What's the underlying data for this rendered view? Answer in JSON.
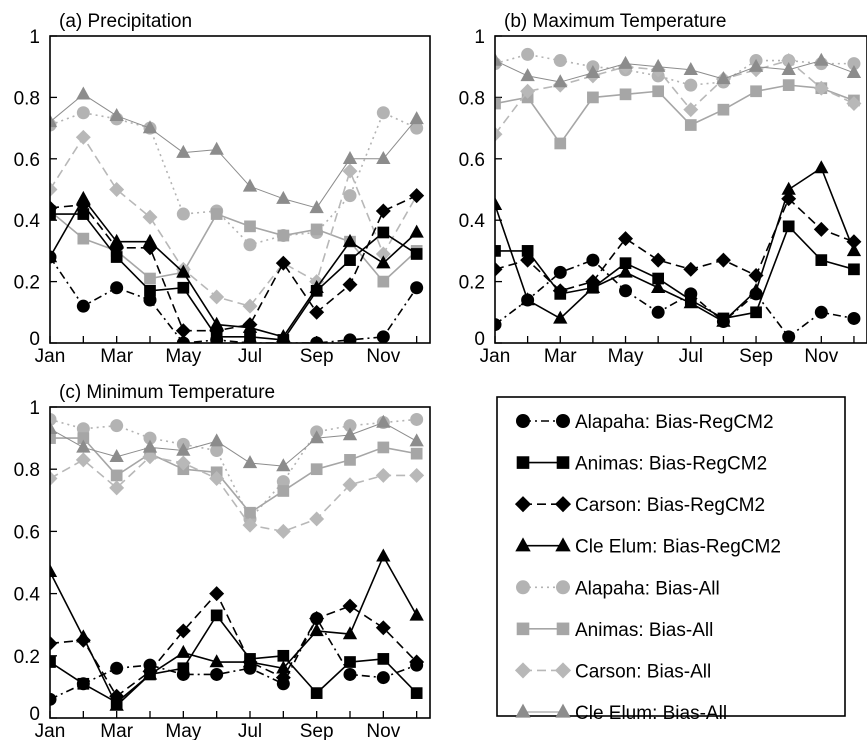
{
  "chart_data": [
    {
      "type": "line",
      "title": "(a) Precipitation",
      "ylim": [
        0,
        1
      ],
      "yticks": [
        "0",
        "0.2",
        "0.4",
        "0.6",
        "0.8",
        "1"
      ],
      "xticks": [
        "Jan",
        "Mar",
        "May",
        "Jul",
        "Sep",
        "Nov"
      ],
      "x": [
        1,
        2,
        3,
        4,
        5,
        6,
        7,
        8,
        9,
        10,
        11,
        12
      ],
      "series": [
        {
          "name": "Alapaha: Bias-RegCM2",
          "values": [
            0.28,
            0.12,
            0.18,
            0.14,
            0.0,
            0.01,
            0.0,
            0.0,
            0.0,
            0.01,
            0.02,
            0.18
          ]
        },
        {
          "name": "Animas: Bias-RegCM2",
          "values": [
            0.42,
            0.42,
            0.28,
            0.17,
            0.18,
            0.02,
            0.02,
            0.01,
            0.17,
            0.27,
            0.36,
            0.29
          ]
        },
        {
          "name": "Carson: Bias-RegCM2",
          "values": [
            0.44,
            0.45,
            0.31,
            0.31,
            0.04,
            0.04,
            0.06,
            0.26,
            0.1,
            0.19,
            0.43,
            0.48
          ]
        },
        {
          "name": "Cle Elum: Bias-RegCM2",
          "values": [
            0.28,
            0.47,
            0.33,
            0.33,
            0.23,
            0.06,
            0.05,
            0.02,
            0.18,
            0.33,
            0.26,
            0.36
          ]
        },
        {
          "name": "Alapaha: Bias-All",
          "values": [
            0.71,
            0.75,
            0.73,
            0.7,
            0.42,
            0.43,
            0.32,
            0.35,
            0.36,
            0.48,
            0.75,
            0.7
          ]
        },
        {
          "name": "Animas: Bias-All",
          "values": [
            0.43,
            0.34,
            0.3,
            0.21,
            0.23,
            0.42,
            0.38,
            0.35,
            0.37,
            0.33,
            0.2,
            0.3
          ]
        },
        {
          "name": "Carson: Bias-All",
          "values": [
            0.5,
            0.67,
            0.5,
            0.41,
            0.24,
            0.15,
            0.12,
            0.26,
            0.2,
            0.56,
            0.29,
            0.48
          ]
        },
        {
          "name": "Cle Elum: Bias-All",
          "values": [
            0.72,
            0.81,
            0.74,
            0.7,
            0.62,
            0.63,
            0.51,
            0.47,
            0.44,
            0.6,
            0.6,
            0.73
          ]
        }
      ]
    },
    {
      "type": "line",
      "title": "(b) Maximum Temperature",
      "ylim": [
        0,
        1
      ],
      "yticks": [
        "0",
        "0.2",
        "0.4",
        "0.6",
        "0.8",
        "1"
      ],
      "xticks": [
        "Jan",
        "Mar",
        "May",
        "Jul",
        "Sep",
        "Nov"
      ],
      "x": [
        1,
        2,
        3,
        4,
        5,
        6,
        7,
        8,
        9,
        10,
        11,
        12
      ],
      "series": [
        {
          "name": "Alapaha: Bias-RegCM2",
          "values": [
            0.06,
            0.14,
            0.23,
            0.27,
            0.17,
            0.1,
            0.16,
            0.07,
            0.16,
            0.02,
            0.1,
            0.08
          ]
        },
        {
          "name": "Animas: Bias-RegCM2",
          "values": [
            0.3,
            0.3,
            0.16,
            0.18,
            0.26,
            0.21,
            0.14,
            0.08,
            0.1,
            0.38,
            0.27,
            0.24
          ]
        },
        {
          "name": "Carson: Bias-RegCM2",
          "values": [
            0.24,
            0.27,
            0.17,
            0.2,
            0.34,
            0.27,
            0.24,
            0.27,
            0.22,
            0.47,
            0.37,
            0.33
          ]
        },
        {
          "name": "Cle Elum: Bias-RegCM2",
          "values": [
            0.45,
            0.14,
            0.08,
            0.18,
            0.23,
            0.18,
            0.13,
            0.07,
            0.17,
            0.5,
            0.57,
            0.3
          ]
        },
        {
          "name": "Alapaha: Bias-All",
          "values": [
            0.91,
            0.94,
            0.92,
            0.9,
            0.89,
            0.87,
            0.84,
            0.85,
            0.92,
            0.92,
            0.91,
            0.91
          ]
        },
        {
          "name": "Animas: Bias-All",
          "values": [
            0.78,
            0.8,
            0.65,
            0.8,
            0.81,
            0.82,
            0.71,
            0.76,
            0.82,
            0.84,
            0.83,
            0.79
          ]
        },
        {
          "name": "Carson: Bias-All",
          "values": [
            0.68,
            0.82,
            0.84,
            0.87,
            0.9,
            0.89,
            0.76,
            0.86,
            0.89,
            0.92,
            0.83,
            0.78
          ]
        },
        {
          "name": "Cle Elum: Bias-All",
          "values": [
            0.92,
            0.87,
            0.85,
            0.88,
            0.91,
            0.9,
            0.89,
            0.86,
            0.9,
            0.89,
            0.92,
            0.88
          ]
        }
      ]
    },
    {
      "type": "line",
      "title": "(c) Minimum Temperature",
      "ylim": [
        0,
        1
      ],
      "yticks": [
        "0",
        "0.2",
        "0.4",
        "0.6",
        "0.8",
        "1"
      ],
      "xticks": [
        "Jan",
        "Mar",
        "May",
        "Jul",
        "Sep",
        "Nov"
      ],
      "x": [
        1,
        2,
        3,
        4,
        5,
        6,
        7,
        8,
        9,
        10,
        11,
        12
      ],
      "series": [
        {
          "name": "Alapaha: Bias-RegCM2",
          "values": [
            0.06,
            0.11,
            0.16,
            0.17,
            0.14,
            0.14,
            0.16,
            0.11,
            0.32,
            0.14,
            0.13,
            0.17
          ]
        },
        {
          "name": "Animas: Bias-RegCM2",
          "values": [
            0.18,
            0.11,
            0.05,
            0.14,
            0.16,
            0.33,
            0.19,
            0.2,
            0.08,
            0.18,
            0.19,
            0.08
          ]
        },
        {
          "name": "Carson: Bias-RegCM2",
          "values": [
            0.24,
            0.25,
            0.07,
            0.15,
            0.28,
            0.4,
            0.18,
            0.13,
            0.32,
            0.36,
            0.29,
            0.18
          ]
        },
        {
          "name": "Cle Elum: Bias-RegCM2",
          "values": [
            0.47,
            0.26,
            0.04,
            0.14,
            0.21,
            0.18,
            0.18,
            0.16,
            0.28,
            0.27,
            0.52,
            0.33
          ]
        },
        {
          "name": "Alapaha: Bias-All",
          "values": [
            0.96,
            0.93,
            0.94,
            0.9,
            0.88,
            0.86,
            0.64,
            0.76,
            0.92,
            0.94,
            0.95,
            0.96
          ]
        },
        {
          "name": "Animas: Bias-All",
          "values": [
            0.9,
            0.9,
            0.78,
            0.85,
            0.8,
            0.79,
            0.66,
            0.73,
            0.8,
            0.83,
            0.87,
            0.85
          ]
        },
        {
          "name": "Carson: Bias-All",
          "values": [
            0.77,
            0.83,
            0.74,
            0.84,
            0.82,
            0.77,
            0.62,
            0.6,
            0.64,
            0.75,
            0.78,
            0.78
          ]
        },
        {
          "name": "Cle Elum: Bias-All",
          "values": [
            0.93,
            0.87,
            0.84,
            0.87,
            0.86,
            0.89,
            0.82,
            0.81,
            0.9,
            0.91,
            0.95,
            0.89
          ]
        }
      ]
    }
  ],
  "styles": {
    "Alapaha: Bias-RegCM2": {
      "color": "#000000",
      "marker": "circle",
      "dash": "dashdot",
      "width": 1.6
    },
    "Animas: Bias-RegCM2": {
      "color": "#000000",
      "marker": "square",
      "dash": "solid",
      "width": 1.6
    },
    "Carson: Bias-RegCM2": {
      "color": "#000000",
      "marker": "diamond",
      "dash": "dashed",
      "width": 1.6
    },
    "Cle Elum: Bias-RegCM2": {
      "color": "#000000",
      "marker": "triangle",
      "dash": "solid",
      "width": 1.6
    },
    "Alapaha: Bias-All": {
      "color": "#b3b3b3",
      "marker": "circle",
      "dash": "dotted",
      "width": 1.6
    },
    "Animas: Bias-All": {
      "color": "#a6a6a6",
      "marker": "square",
      "dash": "solid",
      "width": 1.6
    },
    "Carson: Bias-All": {
      "color": "#b8b8b8",
      "marker": "diamond",
      "dash": "dashed",
      "width": 1.6
    },
    "Cle Elum: Bias-All": {
      "color": "#8c8c8c",
      "marker": "triangle",
      "dash": "solid",
      "width": 1.0
    }
  },
  "legend": {
    "placement": "bottom-right",
    "entries": [
      "Alapaha: Bias-RegCM2",
      "Animas: Bias-RegCM2",
      "Carson: Bias-RegCM2",
      "Cle Elum: Bias-RegCM2",
      "Alapaha: Bias-All",
      "Animas: Bias-All",
      "Carson: Bias-All",
      "Cle Elum: Bias-All"
    ]
  }
}
